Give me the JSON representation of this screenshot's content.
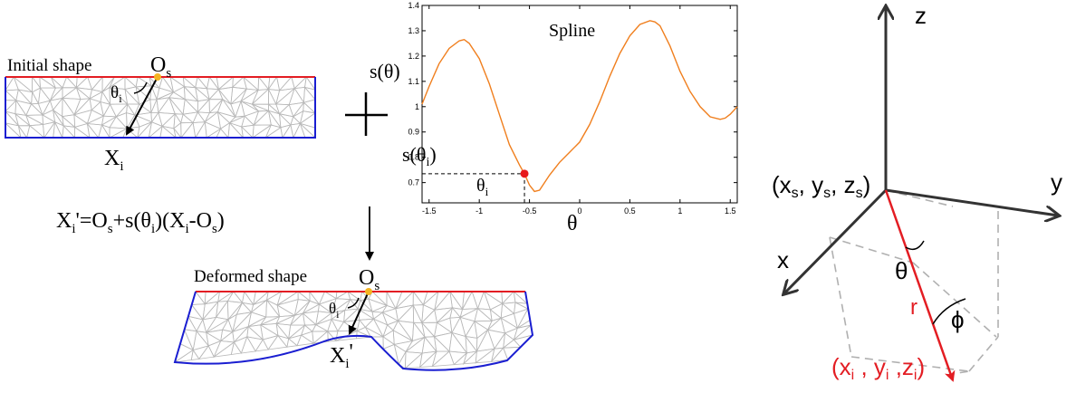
{
  "initial": {
    "label": "Initial shape",
    "origin": "O",
    "origin_sub": "s",
    "point": "X",
    "point_sub": "i",
    "angle": "θ",
    "angle_sub": "i"
  },
  "plus_symbol": "+",
  "formula": {
    "x": "X",
    "i": "i",
    "eq": "'=O",
    "s1": "s",
    "mid": "+s(θ",
    "i2": "i",
    "close": ")(X",
    "i3": "i",
    "minus": "-O",
    "s2": "s",
    "end": ")"
  },
  "deformed": {
    "label": "Deformed shape",
    "origin": "O",
    "origin_sub": "s",
    "point": "X",
    "point_sub": "i",
    "prime": "'",
    "angle": "θ",
    "angle_sub": "i"
  },
  "spline": {
    "ylabel": "s(θ)",
    "marker_label": "s(θ",
    "marker_label_sub": "i",
    "marker_label_close": ")",
    "marker_x_label": "θ",
    "marker_x_label_sub": "i"
  },
  "coords": {
    "z": "z",
    "y": "y",
    "x": "x",
    "origin_label": [
      "(x",
      "s",
      ", y",
      "s",
      ", z",
      "s",
      ")"
    ],
    "point_label": [
      "(x",
      "i",
      " , y",
      "i",
      " ,z",
      "i",
      ")"
    ],
    "r": "r",
    "theta": "θ",
    "phi": "ϕ"
  },
  "chart_data": {
    "type": "line",
    "title": "Spline",
    "xlabel": "θ",
    "ylabel": "s(θ)",
    "xlim": [
      -1.57,
      1.57
    ],
    "ylim": [
      0.62,
      1.4
    ],
    "xticks": [
      -1.5,
      -1,
      -0.5,
      0,
      0.5,
      1,
      1.5
    ],
    "xtick_labels": [
      "-1.5",
      "-1",
      "-0.5",
      "0",
      "0.5",
      "1",
      "1.5"
    ],
    "yticks": [
      0.7,
      0.8,
      0.9,
      1.0,
      1.1,
      1.2,
      1.3,
      1.4
    ],
    "ytick_labels": [
      "0.7",
      "0.8",
      "0.9",
      "1",
      "1.1",
      "1.2",
      "1.3",
      "1.4"
    ],
    "series": [
      {
        "color": "#f07f1e",
        "x": [
          -1.57,
          -1.5,
          -1.4,
          -1.3,
          -1.2,
          -1.15,
          -1.1,
          -1.0,
          -0.9,
          -0.8,
          -0.7,
          -0.6,
          -0.55,
          -0.5,
          -0.45,
          -0.4,
          -0.3,
          -0.2,
          -0.1,
          0.0,
          0.1,
          0.2,
          0.3,
          0.4,
          0.5,
          0.6,
          0.7,
          0.75,
          0.8,
          0.9,
          1.0,
          1.1,
          1.2,
          1.3,
          1.4,
          1.45,
          1.5,
          1.57
        ],
        "y": [
          1.01,
          1.08,
          1.17,
          1.23,
          1.26,
          1.265,
          1.25,
          1.19,
          1.09,
          0.97,
          0.85,
          0.77,
          0.735,
          0.69,
          0.665,
          0.67,
          0.73,
          0.78,
          0.82,
          0.86,
          0.93,
          1.02,
          1.12,
          1.21,
          1.28,
          1.325,
          1.34,
          1.335,
          1.32,
          1.24,
          1.14,
          1.06,
          1.0,
          0.96,
          0.95,
          0.955,
          0.97,
          1.0
        ]
      }
    ],
    "marker": {
      "x": -0.55,
      "y": 0.735,
      "color": "#e8191b"
    }
  },
  "colors": {
    "red_edge": "#e31d23",
    "blue_edge": "#1a1ed1",
    "mesh": "#b9b9b9",
    "origin_dot": "#f4b522",
    "spline": "#f07f1e",
    "marker": "#e8191b",
    "axis": "#333333",
    "dashed": "#b0b0b0"
  }
}
